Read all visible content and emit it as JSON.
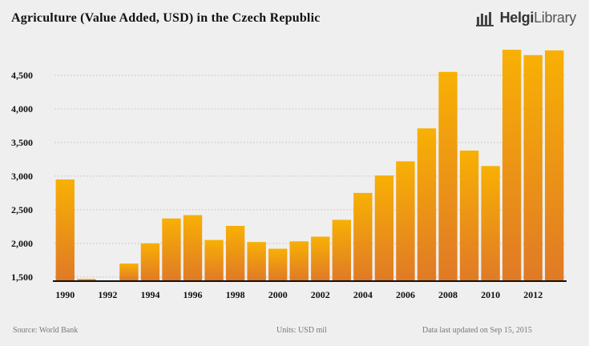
{
  "header": {
    "title": "Agriculture (Value Added, USD) in the Czech Republic",
    "logo_text_bold": "Helgi",
    "logo_text": "Library"
  },
  "footer": {
    "source": "Source: World Bank",
    "units": "Units: USD mil",
    "updated": "Data last updated on Sep 15, 2015"
  },
  "chart_data": {
    "type": "bar",
    "title": "Agriculture (Value Added, USD) in the Czech Republic",
    "xlabel": "",
    "ylabel": "",
    "units": "USD mil",
    "categories": [
      "1990",
      "1991",
      "1992",
      "1993",
      "1994",
      "1995",
      "1996",
      "1997",
      "1998",
      "1999",
      "2000",
      "2001",
      "2002",
      "2003",
      "2004",
      "2005",
      "2006",
      "2007",
      "2008",
      "2009",
      "2010",
      "2011",
      "2012",
      "2013"
    ],
    "values": [
      2950,
      1470,
      1450,
      1700,
      2000,
      2370,
      2420,
      2050,
      2260,
      2020,
      1920,
      2030,
      2100,
      2350,
      2750,
      3010,
      3220,
      3710,
      4550,
      3380,
      3150,
      4880,
      4800,
      4870
    ],
    "x_tick_labels": [
      "1990",
      "1992",
      "1994",
      "1996",
      "1998",
      "2000",
      "2002",
      "2004",
      "2006",
      "2008",
      "2010",
      "2012"
    ],
    "y_ticks": [
      1500,
      2000,
      2500,
      3000,
      3500,
      4000,
      4500
    ],
    "y_tick_labels": [
      "1,500",
      "2,000",
      "2,500",
      "3,000",
      "3,500",
      "4,000",
      "4,500"
    ],
    "ylim": [
      1450,
      5000
    ],
    "grid": true,
    "colors": {
      "bar_top": "#f8b004",
      "bar_bottom": "#e07a26",
      "grid": "#d8c8c0",
      "axis": "#111111"
    }
  }
}
